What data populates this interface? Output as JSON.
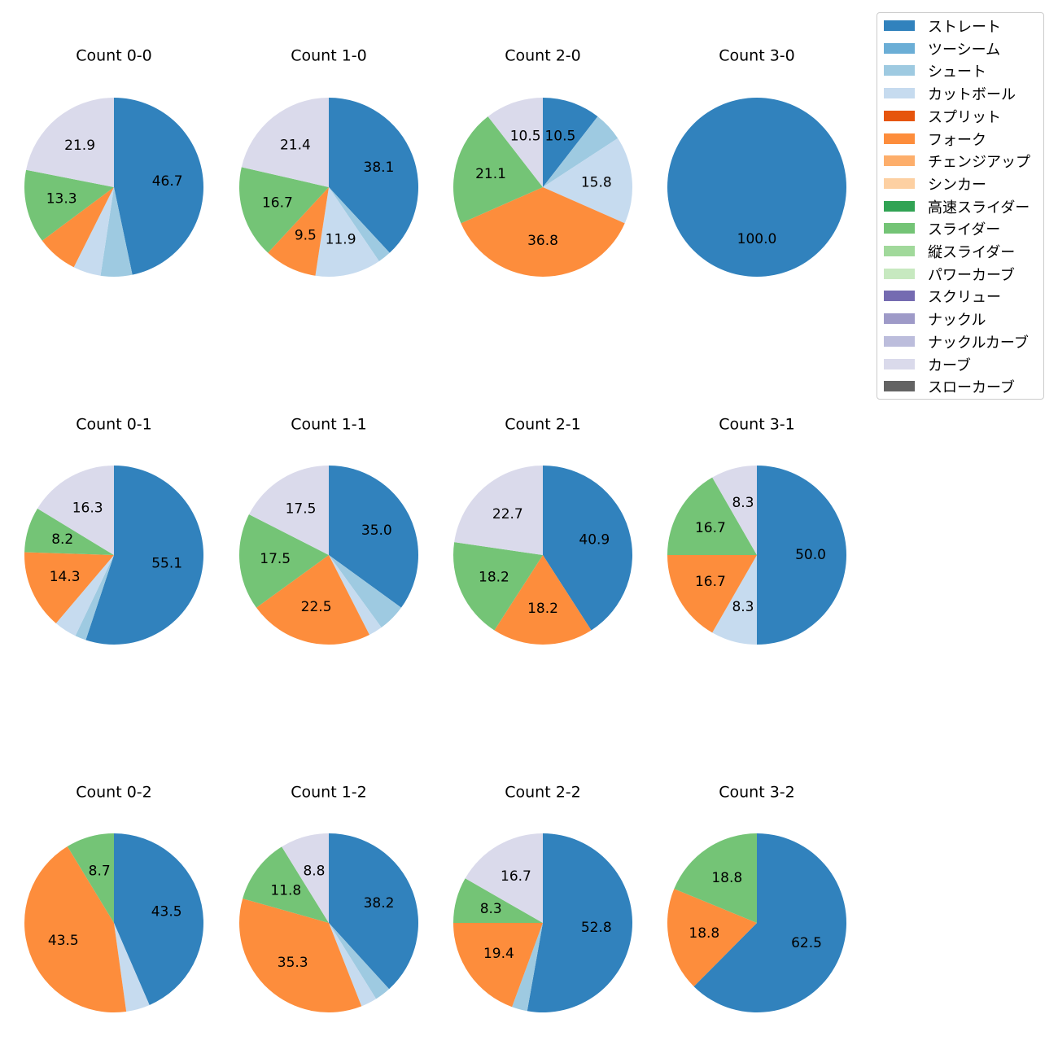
{
  "pitch_types": [
    {
      "name": "ストレート",
      "color": "#3182bd"
    },
    {
      "name": "ツーシーム",
      "color": "#6baed6"
    },
    {
      "name": "シュート",
      "color": "#9ecae1"
    },
    {
      "name": "カットボール",
      "color": "#c6dbef"
    },
    {
      "name": "スプリット",
      "color": "#e6550d"
    },
    {
      "name": "フォーク",
      "color": "#fd8d3c"
    },
    {
      "name": "チェンジアップ",
      "color": "#fdae6b"
    },
    {
      "name": "シンカー",
      "color": "#fdd0a2"
    },
    {
      "name": "高速スライダー",
      "color": "#31a354"
    },
    {
      "name": "スライダー",
      "color": "#74c476"
    },
    {
      "name": "縦スライダー",
      "color": "#a1d99b"
    },
    {
      "name": "パワーカーブ",
      "color": "#c7e9c0"
    },
    {
      "name": "スクリュー",
      "color": "#756bb1"
    },
    {
      "name": "ナックル",
      "color": "#9e9ac8"
    },
    {
      "name": "ナックルカーブ",
      "color": "#bcbddc"
    },
    {
      "name": "カーブ",
      "color": "#dadaeb"
    },
    {
      "name": "スローカーブ",
      "color": "#636363"
    }
  ],
  "chart_data": [
    {
      "type": "pie",
      "title": "Count 0-0",
      "labels": [
        "ストレート",
        "シュート",
        "カットボール",
        "フォーク",
        "スライダー",
        "カーブ"
      ],
      "values": [
        46.7,
        5.7,
        5.0,
        7.4,
        13.3,
        21.9
      ],
      "data_labels": [
        "46.7",
        "",
        "",
        "",
        "13.3",
        "21.9"
      ]
    },
    {
      "type": "pie",
      "title": "Count 1-0",
      "labels": [
        "ストレート",
        "シュート",
        "カットボール",
        "フォーク",
        "スライダー",
        "カーブ"
      ],
      "values": [
        38.1,
        2.4,
        11.9,
        9.5,
        16.7,
        21.4
      ],
      "data_labels": [
        "38.1",
        "",
        "11.9",
        "9.5",
        "16.7",
        "21.4"
      ]
    },
    {
      "type": "pie",
      "title": "Count 2-0",
      "labels": [
        "ストレート",
        "シュート",
        "カットボール",
        "フォーク",
        "スライダー",
        "カーブ"
      ],
      "values": [
        10.5,
        5.3,
        15.8,
        36.8,
        21.1,
        10.5
      ],
      "data_labels": [
        "10.5",
        "",
        "15.8",
        "36.8",
        "21.1",
        "10.5"
      ]
    },
    {
      "type": "pie",
      "title": "Count 3-0",
      "labels": [
        "ストレート"
      ],
      "values": [
        100.0
      ],
      "data_labels": [
        "100.0"
      ]
    },
    {
      "type": "pie",
      "title": "Count 0-1",
      "labels": [
        "ストレート",
        "シュート",
        "カットボール",
        "フォーク",
        "スライダー",
        "カーブ"
      ],
      "values": [
        55.1,
        2.0,
        4.1,
        14.3,
        8.2,
        16.3
      ],
      "data_labels": [
        "55.1",
        "",
        "",
        "14.3",
        "8.2",
        "16.3"
      ]
    },
    {
      "type": "pie",
      "title": "Count 1-1",
      "labels": [
        "ストレート",
        "シュート",
        "カットボール",
        "フォーク",
        "スライダー",
        "カーブ"
      ],
      "values": [
        35.0,
        5.0,
        2.5,
        22.5,
        17.5,
        17.5
      ],
      "data_labels": [
        "35.0",
        "",
        "",
        "22.5",
        "17.5",
        "17.5"
      ]
    },
    {
      "type": "pie",
      "title": "Count 2-1",
      "labels": [
        "ストレート",
        "フォーク",
        "スライダー",
        "カーブ"
      ],
      "values": [
        40.9,
        18.2,
        18.2,
        22.7
      ],
      "data_labels": [
        "40.9",
        "18.2",
        "18.2",
        "22.7"
      ]
    },
    {
      "type": "pie",
      "title": "Count 3-1",
      "labels": [
        "ストレート",
        "カットボール",
        "フォーク",
        "スライダー",
        "カーブ"
      ],
      "values": [
        50.0,
        8.3,
        16.7,
        16.7,
        8.3
      ],
      "data_labels": [
        "50.0",
        "8.3",
        "16.7",
        "16.7",
        "8.3"
      ]
    },
    {
      "type": "pie",
      "title": "Count 0-2",
      "labels": [
        "ストレート",
        "カットボール",
        "フォーク",
        "スライダー"
      ],
      "values": [
        43.5,
        4.3,
        43.5,
        8.7
      ],
      "data_labels": [
        "43.5",
        "",
        "43.5",
        "8.7"
      ]
    },
    {
      "type": "pie",
      "title": "Count 1-2",
      "labels": [
        "ストレート",
        "シュート",
        "カットボール",
        "フォーク",
        "スライダー",
        "カーブ"
      ],
      "values": [
        38.2,
        2.9,
        2.9,
        35.3,
        11.8,
        8.8
      ],
      "data_labels": [
        "38.2",
        "",
        "",
        "35.3",
        "11.8",
        "8.8"
      ]
    },
    {
      "type": "pie",
      "title": "Count 2-2",
      "labels": [
        "ストレート",
        "シュート",
        "フォーク",
        "スライダー",
        "カーブ"
      ],
      "values": [
        52.8,
        2.8,
        19.4,
        8.3,
        16.7
      ],
      "data_labels": [
        "52.8",
        "",
        "19.4",
        "8.3",
        "16.7"
      ]
    },
    {
      "type": "pie",
      "title": "Count 3-2",
      "labels": [
        "ストレート",
        "フォーク",
        "スライダー"
      ],
      "values": [
        62.5,
        18.8,
        18.8
      ],
      "data_labels": [
        "62.5",
        "18.8",
        "18.8"
      ]
    }
  ]
}
